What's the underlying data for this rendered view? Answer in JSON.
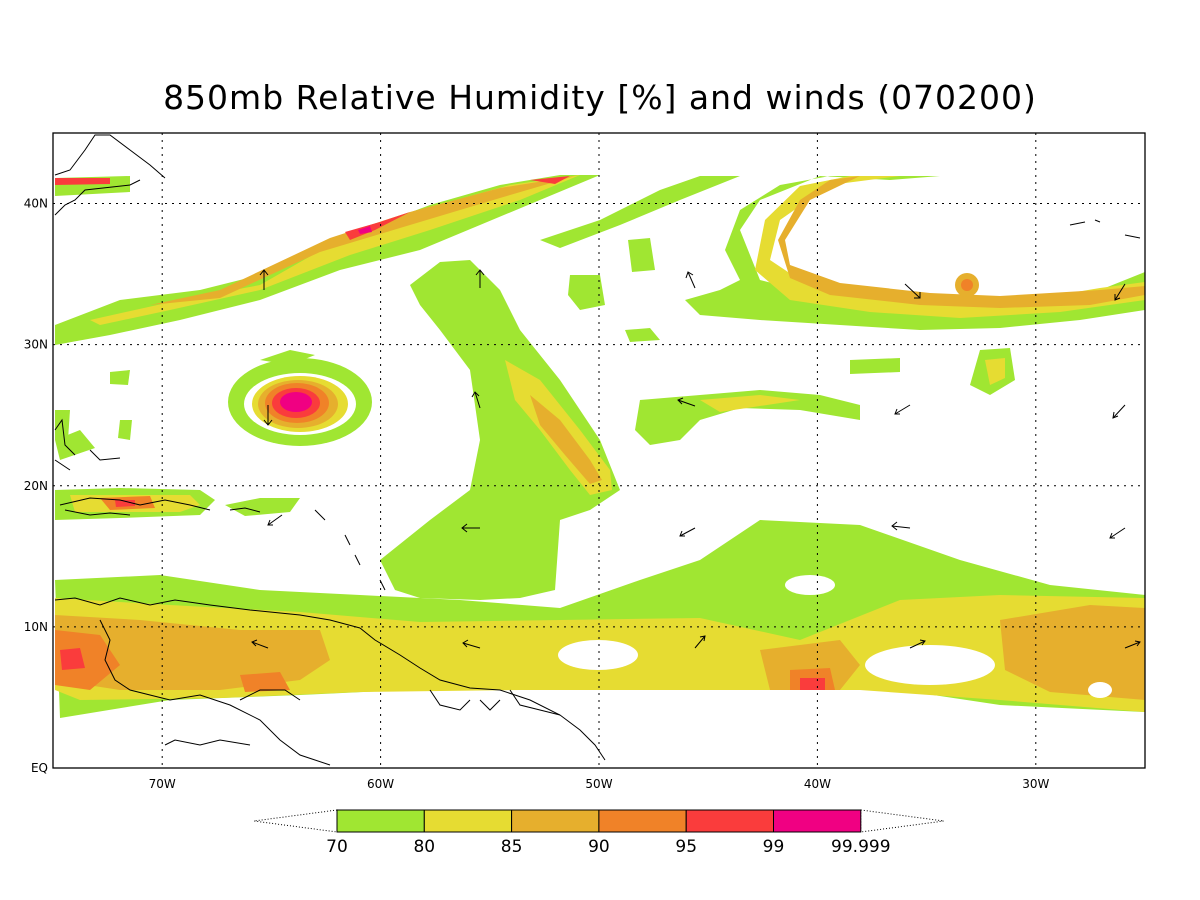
{
  "title": "850mb Relative Humidity [%] and winds (070200)",
  "map": {
    "lon_range": [
      -75,
      -25
    ],
    "lat_range": [
      0,
      45
    ],
    "lon_ticks": [
      {
        "value": -70,
        "label": "70W"
      },
      {
        "value": -60,
        "label": "60W"
      },
      {
        "value": -50,
        "label": "50W"
      },
      {
        "value": -40,
        "label": "40W"
      },
      {
        "value": -30,
        "label": "30W"
      }
    ],
    "lat_ticks": [
      {
        "value": 0,
        "label": "EQ"
      },
      {
        "value": 10,
        "label": "10N"
      },
      {
        "value": 20,
        "label": "20N"
      },
      {
        "value": 30,
        "label": "30N"
      },
      {
        "value": 40,
        "label": "40N"
      }
    ],
    "gridlines": "dotted"
  },
  "colorbar": {
    "levels": [
      "70",
      "80",
      "85",
      "90",
      "95",
      "99",
      "99.999"
    ],
    "colors": [
      "#a0e632",
      "#e6dc32",
      "#e6af2d",
      "#f08228",
      "#fa3c3c",
      "#f00082"
    ]
  }
}
